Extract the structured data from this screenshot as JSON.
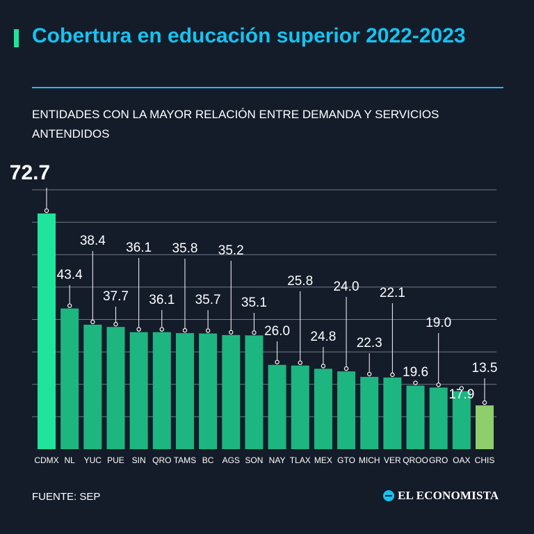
{
  "header": {
    "title": "Cobertura en educación superior 2022-2023",
    "subtitle": "ENTIDADES CON LA MAYOR RELACIÓN ENTRE DEMANDA Y SERVICIOS ANTENDIDOS"
  },
  "footer": {
    "source": "FUENTE: SEP",
    "logo_text": "EL ECONOMISTA"
  },
  "colors": {
    "background": "#141c2a",
    "accent": "#16c3f0",
    "highlight_bar": "#1ee59b",
    "bar": "#1db680",
    "lowest_bar": "#8fcf6b",
    "gridline": "#9aa0aa"
  },
  "chart_data": {
    "type": "bar",
    "title": "Cobertura en educación superior 2022-2023",
    "subtitle": "ENTIDADES CON LA MAYOR RELACIÓN ENTRE DEMANDA Y SERVICIOS ANTENDIDOS",
    "categories": [
      "CDMX",
      "NL",
      "YUC",
      "PUE",
      "SIN",
      "QRO",
      "TAMS",
      "BC",
      "AGS",
      "SON",
      "NAY",
      "TLAX",
      "MEX",
      "GTO",
      "MICH",
      "VER",
      "QROO",
      "GRO",
      "OAX",
      "CHIS"
    ],
    "values": [
      72.7,
      43.4,
      38.4,
      37.7,
      36.1,
      36.1,
      35.8,
      35.7,
      35.2,
      35.1,
      26.0,
      25.8,
      24.8,
      24.0,
      22.3,
      22.1,
      19.6,
      19.0,
      17.9,
      13.5
    ],
    "labels": [
      "72.7",
      "43.4",
      "38.4",
      "37.7",
      "36.1",
      "36.1",
      "35.8",
      "35.7",
      "35.2",
      "35.1",
      "26.0",
      "25.8",
      "24.8",
      "24.0",
      "22.3",
      "22.1",
      "19.6",
      "19.0",
      "17.9",
      "13.5"
    ],
    "xlabel": "",
    "ylabel": "",
    "ylim": [
      0,
      80
    ],
    "grid": true,
    "legend": "none"
  }
}
